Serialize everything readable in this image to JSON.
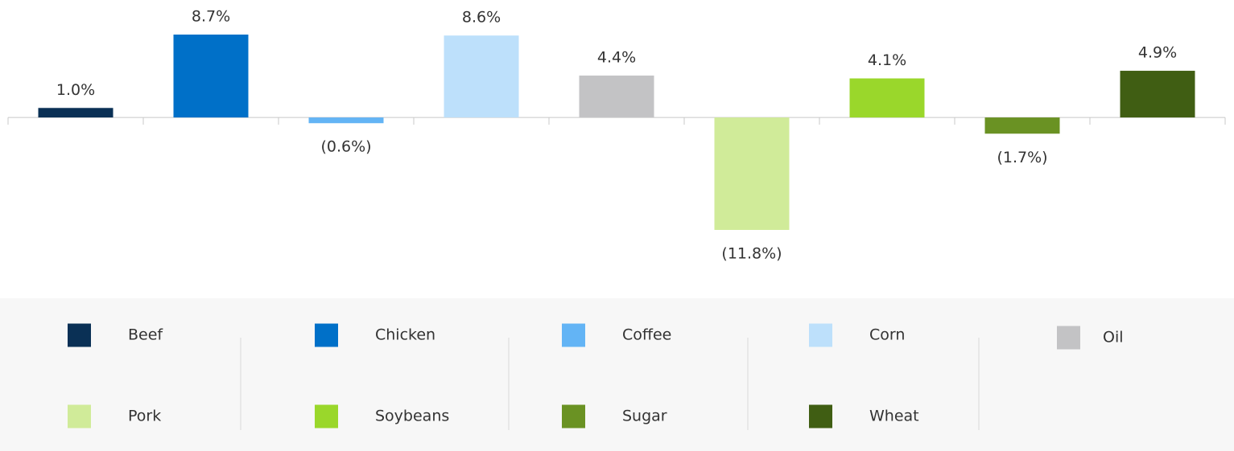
{
  "chart_data": {
    "type": "bar",
    "categories": [
      "Beef",
      "Chicken",
      "Coffee",
      "Corn",
      "Oil",
      "Pork",
      "Soybeans",
      "Sugar",
      "Wheat"
    ],
    "values": [
      1.0,
      8.7,
      -0.6,
      8.6,
      4.4,
      -11.8,
      4.1,
      -1.7,
      4.9
    ],
    "value_labels": [
      "1.0%",
      "8.7%",
      "(0.6%)",
      "8.6%",
      "4.4%",
      "(11.8%)",
      "4.1%",
      "(1.7%)",
      "4.9%"
    ],
    "colors": [
      "#0a3055",
      "#0070c8",
      "#63b4f5",
      "#bde0fb",
      "#c3c3c5",
      "#d0eb99",
      "#9ad72b",
      "#6a9223",
      "#405e13"
    ]
  }
}
